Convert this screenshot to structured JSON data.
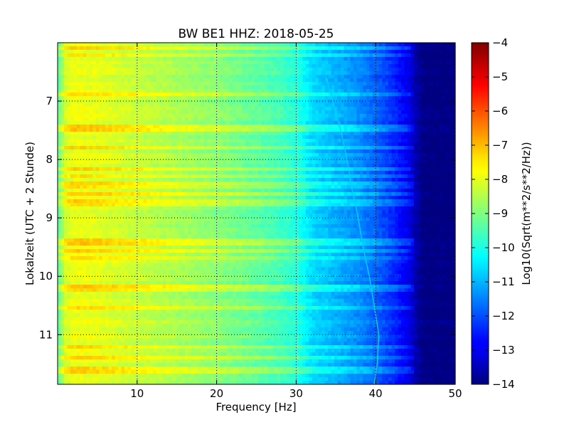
{
  "chart_data": {
    "type": "heatmap",
    "title": "BW BE1 HHZ: 2018-05-25",
    "xlabel": "Frequency [Hz]",
    "ylabel": "Lokalzeit (UTC + 2 Stunde)",
    "colorbar_label": "Log10(Sqrt(m**2/s**2/Hz))",
    "xlim": [
      0,
      50
    ],
    "ylim": [
      6.0,
      11.85
    ],
    "y_inverted": true,
    "x_ticks": [
      10,
      20,
      30,
      40,
      50
    ],
    "y_ticks": [
      7,
      8,
      9,
      10,
      11
    ],
    "clim": [
      -14,
      -4
    ],
    "colorbar_ticks": [
      -4,
      -5,
      -6,
      -7,
      -8,
      -9,
      -10,
      -11,
      -12,
      -13,
      -14
    ],
    "colormap": "jet",
    "grid": true,
    "spectrum_profile": {
      "frequency_hz": [
        0,
        1,
        2,
        5,
        10,
        15,
        20,
        25,
        28,
        30,
        32,
        35,
        38,
        40,
        42,
        44,
        45,
        46,
        50
      ],
      "value": [
        -9.4,
        -8.2,
        -7.9,
        -8.0,
        -8.3,
        -8.6,
        -8.9,
        -9.3,
        -9.6,
        -9.9,
        -10.6,
        -11.0,
        -11.4,
        -11.8,
        -12.3,
        -12.9,
        -13.5,
        -14.0,
        -14.0
      ]
    },
    "bright_rows_hours": [
      6.1,
      6.22,
      6.88,
      7.45,
      7.8,
      8.15,
      8.3,
      8.45,
      8.58,
      8.73,
      9.4,
      9.55,
      9.7,
      10.2,
      10.55,
      11.2,
      11.4,
      11.6
    ],
    "drifting_line": {
      "time_hours": [
        6.5,
        7.0,
        7.5,
        8.0,
        8.5,
        9.0,
        9.5,
        10.0,
        10.5,
        11.0,
        11.5,
        11.85
      ],
      "frequency_hz": [
        33.6,
        34.6,
        35.6,
        36.4,
        37.0,
        37.8,
        38.4,
        39.2,
        39.8,
        40.4,
        40.2,
        39.8
      ]
    }
  }
}
